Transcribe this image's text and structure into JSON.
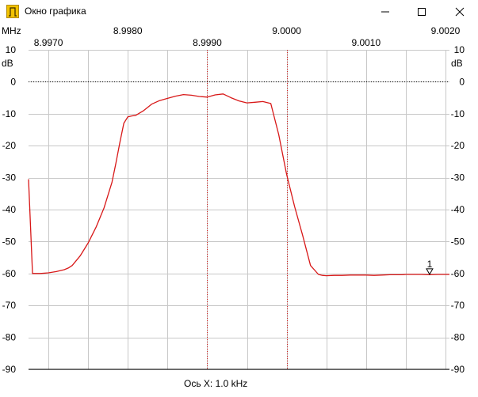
{
  "window": {
    "title": "Окно графика",
    "icon": "bandpass-filter-icon",
    "controls": [
      "minimize-icon",
      "maximize-icon",
      "close-icon"
    ]
  },
  "colors": {
    "trace": "#d81818",
    "grid": "#c8c8c8",
    "cursor": "#d81818",
    "zero_line": "#000000"
  },
  "chart_data": {
    "type": "line",
    "x_unit_label": "MHz",
    "y_unit_label": "dB",
    "x_ticks_upper": [
      "8.9980",
      "9.0000",
      "9.0020"
    ],
    "x_ticks_lower": [
      "8.9970",
      "8.9990",
      "9.0010"
    ],
    "y_ticks": [
      "10",
      "0",
      "-10",
      "-20",
      "-30",
      "-40",
      "-50",
      "-60",
      "-70",
      "-80",
      "-90"
    ],
    "xlim": [
      8.99675,
      9.00205
    ],
    "ylim": [
      -90,
      10
    ],
    "x_axis_caption": "Ось X: 1.0 kHz",
    "grid": true,
    "reference_line": 0,
    "vertical_markers": [
      8.999,
      9.0
    ],
    "marker": {
      "label": "1",
      "x": 9.0018,
      "y": -60.5
    },
    "series": [
      {
        "x": [
          8.99675,
          8.9968,
          8.9969,
          8.997,
          8.9971,
          8.9972,
          8.99725,
          8.9973,
          8.9974,
          8.9975,
          8.9976,
          8.9977,
          8.9978,
          8.99785,
          8.9979,
          8.99795,
          8.998,
          8.99805,
          8.9981,
          8.9982,
          8.9983,
          8.9984,
          8.9985,
          8.9986,
          8.9987,
          8.9988,
          8.9989,
          8.999,
          8.9991,
          8.9992,
          8.9993,
          8.9994,
          8.9995,
          8.9996,
          8.9997,
          8.9998,
          8.9999,
          9.0,
          9.0001,
          9.0002,
          9.0003,
          9.0004,
          9.00045,
          9.0005,
          9.0006,
          9.0007,
          9.0008,
          9.0009,
          9.001,
          9.0011,
          9.0012,
          9.0013,
          9.0014,
          9.00145,
          9.0015,
          9.0016,
          9.0017,
          9.0018,
          9.0019,
          9.002,
          9.00205
        ],
        "values": [
          -30.5,
          -60.0,
          -60.0,
          -59.8,
          -59.4,
          -58.8,
          -58.3,
          -57.5,
          -54.5,
          -50.5,
          -45.5,
          -39.5,
          -31.5,
          -25.5,
          -19.0,
          -13.0,
          -11.0,
          -10.7,
          -10.5,
          -9.0,
          -7.0,
          -5.9,
          -5.2,
          -4.5,
          -4.0,
          -4.2,
          -4.6,
          -4.8,
          -4.1,
          -3.8,
          -5.0,
          -6.0,
          -6.6,
          -6.4,
          -6.2,
          -6.8,
          -16.5,
          -29.0,
          -39.0,
          -48.0,
          -57.5,
          -60.3,
          -60.6,
          -60.7,
          -60.6,
          -60.6,
          -60.5,
          -60.5,
          -60.5,
          -60.6,
          -60.5,
          -60.4,
          -60.4,
          -60.4,
          -60.3,
          -60.3,
          -60.3,
          -60.4,
          -60.3,
          -60.3,
          -60.3
        ]
      }
    ]
  }
}
